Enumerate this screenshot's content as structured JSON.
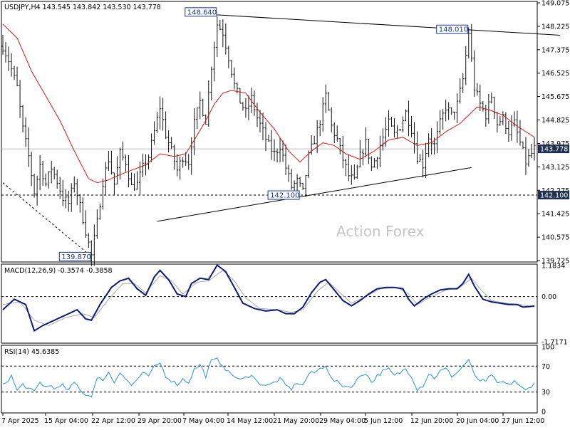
{
  "chart_data": [
    {
      "type": "candlestick",
      "symbol_header": "USDJPY,H4  143.545 143.842 143.530 143.778",
      "watermark": "Action Forex",
      "ylim": [
        139.725,
        149.075
      ],
      "y_ticks": [
        "149.075",
        "148.225",
        "147.375",
        "146.525",
        "145.675",
        "144.825",
        "143.975",
        "143.125",
        "142.275",
        "141.425",
        "140.575",
        "139.725"
      ],
      "last_price": "143.778",
      "support_level": "142.100",
      "x_tick_labels": [
        "7 Apr 2025",
        "15 Apr 04:00",
        "22 Apr 12:00",
        "29 Apr 20:00",
        "7 May 04:00",
        "14 May 12:00",
        "21 May 20:00",
        "29 May 04:00",
        "5 Jun 12:00",
        "12 Jun 20:00",
        "20 Jun 04:00",
        "27 Jun 12:00"
      ],
      "annotations": [
        {
          "text": "148.640",
          "bar": 75,
          "price": 148.64,
          "side": "left"
        },
        {
          "text": "148.010",
          "bar": 163,
          "price": 148.01,
          "side": "left"
        },
        {
          "text": "142.100",
          "bar": 104,
          "price": 142.1,
          "side": "left"
        },
        {
          "text": "139.870",
          "bar": 31,
          "price": 139.87,
          "side": "left"
        }
      ],
      "trendlines": [
        {
          "from": {
            "bar": 75,
            "price": 148.64
          },
          "to": {
            "bar": 195,
            "price": 147.9
          }
        },
        {
          "from": {
            "bar": 54,
            "price": 141.15
          },
          "to": {
            "bar": 164,
            "price": 143.1
          }
        },
        {
          "from": {
            "bar": 0,
            "price": 142.55
          },
          "to": {
            "bar": 31,
            "price": 139.87
          },
          "dashed": true
        }
      ],
      "price_keypoints": [
        [
          0,
          147.5
        ],
        [
          2,
          147.0
        ],
        [
          5,
          146.0
        ],
        [
          7,
          144.5
        ],
        [
          9,
          143.5
        ],
        [
          11,
          142.2
        ],
        [
          13,
          143.2
        ],
        [
          15,
          142.5
        ],
        [
          17,
          143.1
        ],
        [
          19,
          142.6
        ],
        [
          21,
          142.0
        ],
        [
          23,
          141.8
        ],
        [
          25,
          142.6
        ],
        [
          27,
          141.7
        ],
        [
          29,
          140.8
        ],
        [
          31,
          139.9
        ],
        [
          33,
          141.1
        ],
        [
          35,
          142.6
        ],
        [
          37,
          143.4
        ],
        [
          39,
          142.5
        ],
        [
          41,
          143.6
        ],
        [
          43,
          143.3
        ],
        [
          45,
          142.4
        ],
        [
          47,
          142.5
        ],
        [
          49,
          143.1
        ],
        [
          51,
          143.5
        ],
        [
          53,
          144.4
        ],
        [
          55,
          145.3
        ],
        [
          57,
          144.3
        ],
        [
          59,
          143.7
        ],
        [
          61,
          143.0
        ],
        [
          63,
          143.5
        ],
        [
          65,
          143.3
        ],
        [
          67,
          144.7
        ],
        [
          69,
          145.5
        ],
        [
          71,
          144.8
        ],
        [
          73,
          146.8
        ],
        [
          75,
          148.3
        ],
        [
          77,
          148.0
        ],
        [
          79,
          147.1
        ],
        [
          81,
          146.1
        ],
        [
          83,
          145.5
        ],
        [
          85,
          145.1
        ],
        [
          87,
          145.6
        ],
        [
          89,
          144.9
        ],
        [
          91,
          144.4
        ],
        [
          93,
          143.9
        ],
        [
          95,
          143.6
        ],
        [
          97,
          143.9
        ],
        [
          99,
          143.1
        ],
        [
          101,
          142.4
        ],
        [
          103,
          142.6
        ],
        [
          105,
          142.2
        ],
        [
          107,
          143.5
        ],
        [
          109,
          144.1
        ],
        [
          111,
          144.8
        ],
        [
          113,
          145.7
        ],
        [
          115,
          144.6
        ],
        [
          117,
          144.1
        ],
        [
          119,
          143.4
        ],
        [
          121,
          142.8
        ],
        [
          123,
          142.6
        ],
        [
          125,
          143.5
        ],
        [
          127,
          144.0
        ],
        [
          129,
          143.1
        ],
        [
          131,
          143.6
        ],
        [
          133,
          144.2
        ],
        [
          135,
          144.7
        ],
        [
          137,
          144.3
        ],
        [
          139,
          144.6
        ],
        [
          141,
          145.1
        ],
        [
          143,
          144.5
        ],
        [
          145,
          143.5
        ],
        [
          147,
          143.2
        ],
        [
          149,
          144.2
        ],
        [
          151,
          143.9
        ],
        [
          153,
          144.7
        ],
        [
          155,
          145.3
        ],
        [
          157,
          145.0
        ],
        [
          159,
          145.4
        ],
        [
          161,
          146.3
        ],
        [
          163,
          148.0
        ],
        [
          165,
          146.0
        ],
        [
          167,
          145.4
        ],
        [
          169,
          145.0
        ],
        [
          171,
          145.7
        ],
        [
          173,
          144.7
        ],
        [
          175,
          144.9
        ],
        [
          177,
          144.4
        ],
        [
          179,
          144.7
        ],
        [
          181,
          144.0
        ],
        [
          183,
          143.3
        ],
        [
          185,
          143.6
        ],
        [
          186,
          143.78
        ]
      ],
      "ma_keypoints": [
        [
          0,
          148.3
        ],
        [
          5,
          147.8
        ],
        [
          10,
          146.6
        ],
        [
          15,
          145.7
        ],
        [
          20,
          144.8
        ],
        [
          25,
          143.7
        ],
        [
          28,
          143.1
        ],
        [
          30,
          142.7
        ],
        [
          33,
          142.55
        ],
        [
          37,
          142.65
        ],
        [
          40,
          142.8
        ],
        [
          45,
          143.0
        ],
        [
          50,
          143.2
        ],
        [
          55,
          143.6
        ],
        [
          60,
          143.5
        ],
        [
          64,
          143.6
        ],
        [
          67,
          144.1
        ],
        [
          71,
          144.8
        ],
        [
          74,
          145.4
        ],
        [
          77,
          145.8
        ],
        [
          80,
          145.9
        ],
        [
          85,
          145.8
        ],
        [
          90,
          145.1
        ],
        [
          95,
          144.5
        ],
        [
          100,
          143.7
        ],
        [
          104,
          143.3
        ],
        [
          108,
          143.7
        ],
        [
          112,
          144.0
        ],
        [
          116,
          143.9
        ],
        [
          120,
          143.6
        ],
        [
          125,
          143.4
        ],
        [
          130,
          143.7
        ],
        [
          135,
          144.1
        ],
        [
          140,
          144.2
        ],
        [
          145,
          143.9
        ],
        [
          150,
          144.0
        ],
        [
          155,
          144.4
        ],
        [
          160,
          144.7
        ],
        [
          163,
          145.0
        ],
        [
          166,
          145.3
        ],
        [
          170,
          145.2
        ],
        [
          175,
          145.0
        ],
        [
          180,
          144.6
        ],
        [
          186,
          144.2
        ]
      ]
    },
    {
      "type": "line",
      "title": "MACD(12,26,9) -0.3574 -0.3858",
      "ylim": [
        -1.7171,
        1.1834
      ],
      "y_ticks": [
        "1.1834",
        "0.00",
        "-1.7171"
      ],
      "macd_keypoints": [
        [
          0,
          -0.5
        ],
        [
          4,
          -0.1
        ],
        [
          8,
          -0.3
        ],
        [
          11,
          -1.3
        ],
        [
          14,
          -1.1
        ],
        [
          18,
          -0.9
        ],
        [
          22,
          -0.7
        ],
        [
          26,
          -0.5
        ],
        [
          29,
          -0.85
        ],
        [
          31,
          -0.9
        ],
        [
          34,
          -0.3
        ],
        [
          38,
          0.35
        ],
        [
          41,
          0.6
        ],
        [
          44,
          0.7
        ],
        [
          47,
          0.3
        ],
        [
          50,
          0.05
        ],
        [
          53,
          0.75
        ],
        [
          55,
          1.0
        ],
        [
          58,
          0.65
        ],
        [
          61,
          0.1
        ],
        [
          64,
          0.0
        ],
        [
          66,
          0.5
        ],
        [
          69,
          0.7
        ],
        [
          72,
          0.65
        ],
        [
          75,
          1.2
        ],
        [
          78,
          0.95
        ],
        [
          81,
          0.35
        ],
        [
          84,
          -0.25
        ],
        [
          88,
          -0.45
        ],
        [
          92,
          -0.55
        ],
        [
          96,
          -0.5
        ],
        [
          99,
          -0.65
        ],
        [
          102,
          -0.65
        ],
        [
          105,
          -0.4
        ],
        [
          108,
          0.15
        ],
        [
          111,
          0.55
        ],
        [
          113,
          0.65
        ],
        [
          116,
          0.25
        ],
        [
          119,
          -0.15
        ],
        [
          122,
          -0.35
        ],
        [
          125,
          -0.15
        ],
        [
          128,
          0.1
        ],
        [
          131,
          0.3
        ],
        [
          134,
          0.35
        ],
        [
          137,
          0.35
        ],
        [
          140,
          0.3
        ],
        [
          142,
          -0.1
        ],
        [
          144,
          -0.35
        ],
        [
          147,
          -0.1
        ],
        [
          150,
          0.1
        ],
        [
          153,
          0.25
        ],
        [
          156,
          0.3
        ],
        [
          159,
          0.3
        ],
        [
          161,
          0.5
        ],
        [
          163,
          0.85
        ],
        [
          165,
          0.4
        ],
        [
          168,
          -0.1
        ],
        [
          171,
          -0.2
        ],
        [
          174,
          -0.25
        ],
        [
          177,
          -0.3
        ],
        [
          180,
          -0.3
        ],
        [
          182,
          -0.4
        ],
        [
          186,
          -0.36
        ]
      ],
      "signal_keypoints": [
        [
          0,
          -0.3
        ],
        [
          6,
          -0.2
        ],
        [
          11,
          -0.9
        ],
        [
          16,
          -1.1
        ],
        [
          22,
          -0.8
        ],
        [
          28,
          -0.65
        ],
        [
          32,
          -0.8
        ],
        [
          37,
          -0.1
        ],
        [
          42,
          0.5
        ],
        [
          46,
          0.5
        ],
        [
          50,
          0.15
        ],
        [
          55,
          0.8
        ],
        [
          59,
          0.6
        ],
        [
          63,
          0.1
        ],
        [
          68,
          0.55
        ],
        [
          72,
          0.6
        ],
        [
          77,
          1.0
        ],
        [
          81,
          0.6
        ],
        [
          85,
          -0.05
        ],
        [
          90,
          -0.45
        ],
        [
          96,
          -0.5
        ],
        [
          101,
          -0.6
        ],
        [
          105,
          -0.5
        ],
        [
          110,
          0.2
        ],
        [
          114,
          0.55
        ],
        [
          118,
          0.15
        ],
        [
          122,
          -0.25
        ],
        [
          127,
          0.0
        ],
        [
          132,
          0.3
        ],
        [
          138,
          0.35
        ],
        [
          142,
          0.1
        ],
        [
          145,
          -0.3
        ],
        [
          150,
          0.0
        ],
        [
          155,
          0.25
        ],
        [
          160,
          0.35
        ],
        [
          164,
          0.7
        ],
        [
          167,
          0.3
        ],
        [
          171,
          -0.15
        ],
        [
          176,
          -0.25
        ],
        [
          181,
          -0.3
        ],
        [
          186,
          -0.39
        ]
      ]
    },
    {
      "type": "line",
      "title": "RSI(14) 45.6385",
      "ylim": [
        0,
        100
      ],
      "y_ticks": [
        "100",
        "70",
        "30",
        "0"
      ],
      "levels": [
        70,
        30
      ],
      "rsi_keypoints": [
        [
          0,
          40
        ],
        [
          3,
          55
        ],
        [
          5,
          32
        ],
        [
          7,
          42
        ],
        [
          9,
          35
        ],
        [
          11,
          30
        ],
        [
          13,
          45
        ],
        [
          15,
          38
        ],
        [
          17,
          40
        ],
        [
          19,
          35
        ],
        [
          21,
          40
        ],
        [
          23,
          32
        ],
        [
          25,
          45
        ],
        [
          27,
          35
        ],
        [
          29,
          25
        ],
        [
          31,
          25
        ],
        [
          33,
          50
        ],
        [
          35,
          50
        ],
        [
          37,
          60
        ],
        [
          39,
          45
        ],
        [
          41,
          62
        ],
        [
          43,
          50
        ],
        [
          45,
          40
        ],
        [
          47,
          50
        ],
        [
          49,
          58
        ],
        [
          51,
          55
        ],
        [
          53,
          68
        ],
        [
          55,
          75
        ],
        [
          57,
          55
        ],
        [
          59,
          48
        ],
        [
          61,
          42
        ],
        [
          63,
          50
        ],
        [
          65,
          45
        ],
        [
          67,
          65
        ],
        [
          69,
          72
        ],
        [
          71,
          55
        ],
        [
          73,
          78
        ],
        [
          75,
          80
        ],
        [
          77,
          72
        ],
        [
          79,
          60
        ],
        [
          81,
          55
        ],
        [
          83,
          48
        ],
        [
          85,
          52
        ],
        [
          87,
          58
        ],
        [
          89,
          45
        ],
        [
          91,
          42
        ],
        [
          93,
          40
        ],
        [
          95,
          45
        ],
        [
          97,
          50
        ],
        [
          99,
          40
        ],
        [
          101,
          35
        ],
        [
          103,
          45
        ],
        [
          105,
          40
        ],
        [
          107,
          58
        ],
        [
          109,
          60
        ],
        [
          111,
          66
        ],
        [
          113,
          72
        ],
        [
          115,
          50
        ],
        [
          117,
          45
        ],
        [
          119,
          40
        ],
        [
          121,
          38
        ],
        [
          123,
          42
        ],
        [
          125,
          55
        ],
        [
          127,
          60
        ],
        [
          129,
          45
        ],
        [
          131,
          55
        ],
        [
          133,
          62
        ],
        [
          135,
          65
        ],
        [
          137,
          55
        ],
        [
          139,
          60
        ],
        [
          141,
          66
        ],
        [
          143,
          55
        ],
        [
          145,
          35
        ],
        [
          147,
          40
        ],
        [
          149,
          58
        ],
        [
          151,
          52
        ],
        [
          153,
          62
        ],
        [
          155,
          66
        ],
        [
          157,
          55
        ],
        [
          159,
          60
        ],
        [
          161,
          70
        ],
        [
          163,
          80
        ],
        [
          165,
          55
        ],
        [
          167,
          48
        ],
        [
          169,
          45
        ],
        [
          171,
          58
        ],
        [
          173,
          42
        ],
        [
          175,
          46
        ],
        [
          177,
          40
        ],
        [
          179,
          48
        ],
        [
          181,
          38
        ],
        [
          183,
          32
        ],
        [
          185,
          40
        ],
        [
          186,
          45.6
        ]
      ]
    }
  ]
}
